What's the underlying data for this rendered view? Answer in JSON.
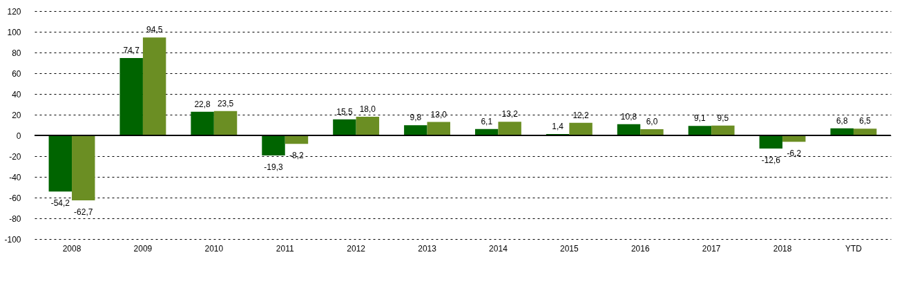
{
  "chart_data": {
    "type": "bar",
    "categories": [
      "2008",
      "2009",
      "2010",
      "2011",
      "2012",
      "2013",
      "2014",
      "2015",
      "2016",
      "2017",
      "2018",
      "YTD"
    ],
    "series": [
      {
        "color": "#006400",
        "values": [
          -54.2,
          74.7,
          22.8,
          -19.3,
          15.5,
          9.8,
          6.1,
          1.4,
          10.8,
          9.1,
          -12.6,
          6.8
        ],
        "value_labels": [
          "-54,2",
          "74,7",
          "22,8",
          "-19,3",
          "15,5",
          "9,8",
          "6,1",
          "1,4",
          "10,8",
          "9,1",
          "-12,6",
          "6,8"
        ]
      },
      {
        "color": "#6b8e23",
        "values": [
          -62.7,
          94.5,
          23.5,
          -8.2,
          18.0,
          13.0,
          13.2,
          12.2,
          6.0,
          9.5,
          -6.2,
          6.5
        ],
        "value_labels": [
          "-62,7",
          "94,5",
          "23,5",
          "-8,2",
          "18,0",
          "13,0",
          "13,2",
          "12,2",
          "6,0",
          "9,5",
          "-6,2",
          "6,5"
        ]
      }
    ],
    "ylim": [
      -100,
      120
    ],
    "yticks": [
      -100,
      -80,
      -60,
      -40,
      -20,
      0,
      20,
      40,
      60,
      80,
      100,
      120
    ],
    "grid": "y",
    "ref_lines": [
      {
        "axis": "y",
        "value": 0,
        "color": "#000000"
      }
    ]
  }
}
